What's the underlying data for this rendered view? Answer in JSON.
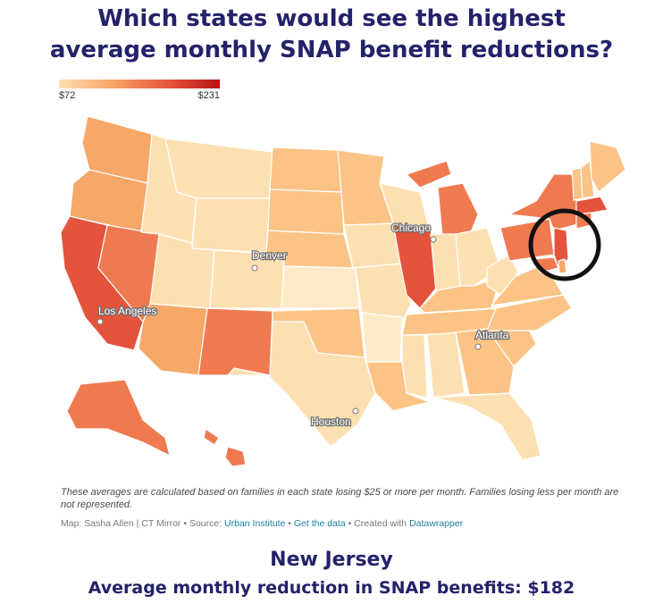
{
  "title": {
    "line1": "Which states would see the highest",
    "line2": "average monthly SNAP benefit reductions?"
  },
  "legend": {
    "min_label": "$72",
    "max_label": "$231",
    "min_value": 72,
    "max_value": 231,
    "colors": [
      "#fde0b2",
      "#f6a565",
      "#e9573f",
      "#b81315"
    ]
  },
  "map": {
    "type": "choropleth",
    "region": "United States",
    "highlight_circle_state": "New Jersey",
    "cities": [
      "Chicago",
      "Denver",
      "Los Angeles",
      "Atlanta",
      "Houston"
    ],
    "state_colors": {
      "high": "#e4533c",
      "mid_high": "#f07a50",
      "mid": "#f6a869",
      "mid_low": "#fbc486",
      "low": "#fde0b2",
      "lowest": "#fdebc8"
    }
  },
  "note": "These averages are calculated based on families in each state losing $25 or more per month. Families losing less per month are not represented.",
  "credits": {
    "map_by": "Map: Sasha Allen | CT Mirror",
    "source_prefix": "• Source:",
    "source": "Urban Institute",
    "sep": "•",
    "get_data": "Get the data",
    "created_prefix": "• Created with",
    "tool": "Datawrapper"
  },
  "highlight": {
    "state": "New Jersey",
    "text": "Average monthly reduction in SNAP benefits: $182",
    "value": 182
  }
}
